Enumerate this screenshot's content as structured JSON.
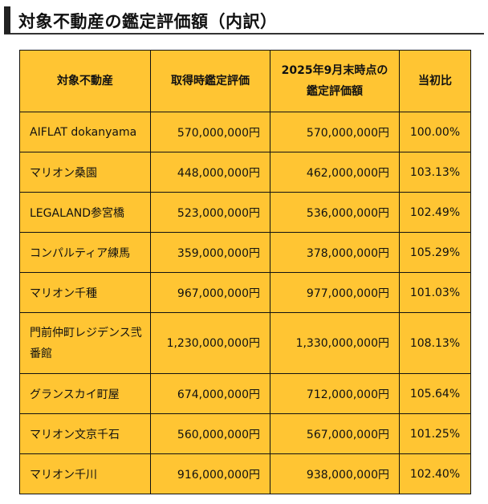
{
  "title": "対象不動産の鑑定評価額（内訳）",
  "headers": [
    "対象不動産",
    "取得時鑑定評価",
    "2025年9月末時点の鑑定評価額",
    "当初比"
  ],
  "header_lines": {
    "c2a": "2025年9月末時点の",
    "c2b": "鑑定評価額"
  },
  "rows": [
    {
      "name": "AIFLAT dokanyama",
      "acq": "570,000,000円",
      "cur": "570,000,000円",
      "ratio": "100.00%"
    },
    {
      "name": "マリオン桑園",
      "acq": "448,000,000円",
      "cur": "462,000,000円",
      "ratio": "103.13%"
    },
    {
      "name": "LEGALAND参宮橋",
      "acq": "523,000,000円",
      "cur": "536,000,000円",
      "ratio": "102.49%"
    },
    {
      "name": "コンパルティア練馬",
      "acq": "359,000,000円",
      "cur": "378,000,000円",
      "ratio": "105.29%"
    },
    {
      "name": "マリオン千種",
      "acq": "967,000,000円",
      "cur": "977,000,000円",
      "ratio": "101.03%"
    },
    {
      "name": "門前仲町レジデンス弐番館",
      "acq": "1,230,000,000円",
      "cur": "1,330,000,000円",
      "ratio": "108.13%"
    },
    {
      "name": "グランスカイ町屋",
      "acq": "674,000,000円",
      "cur": "712,000,000円",
      "ratio": "105.64%"
    },
    {
      "name": "マリオン文京千石",
      "acq": "560,000,000円",
      "cur": "567,000,000円",
      "ratio": "101.25%"
    },
    {
      "name": "マリオン千川",
      "acq": "916,000,000円",
      "cur": "938,000,000円",
      "ratio": "102.40%"
    }
  ]
}
